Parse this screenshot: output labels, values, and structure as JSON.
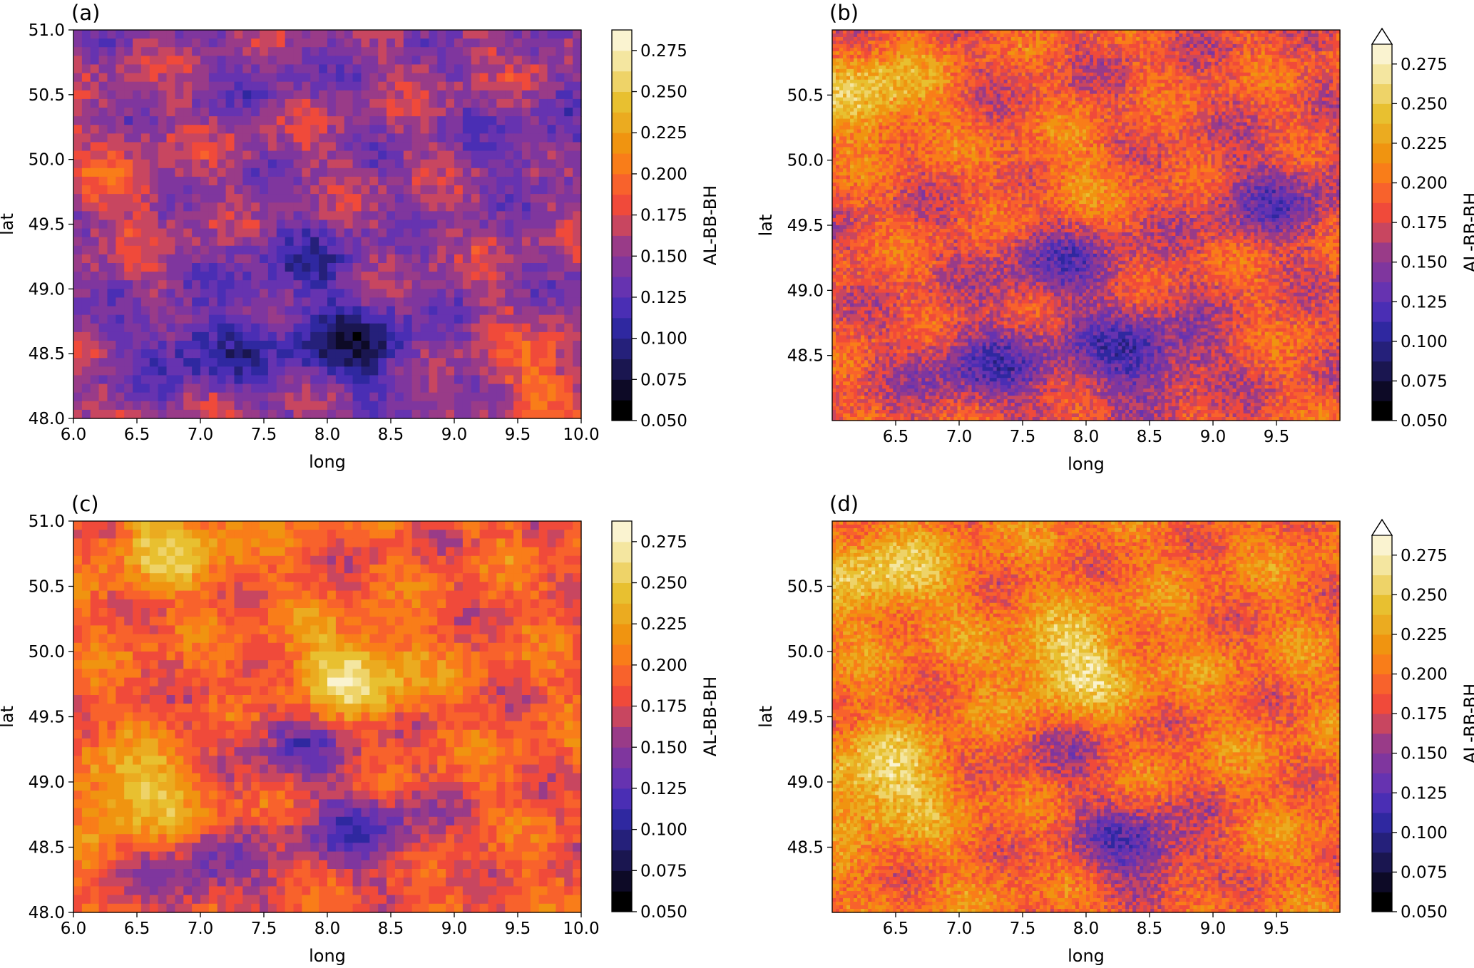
{
  "figure": {
    "colorbar": {
      "label": "AL-BB-BH",
      "ticks": [
        "0.050",
        "0.075",
        "0.100",
        "0.125",
        "0.150",
        "0.175",
        "0.200",
        "0.225",
        "0.250",
        "0.275"
      ],
      "boundaries": [
        0.05,
        0.0625,
        0.075,
        0.0875,
        0.1,
        0.1125,
        0.125,
        0.1375,
        0.15,
        0.1625,
        0.175,
        0.1875,
        0.2,
        0.2125,
        0.225,
        0.2375,
        0.25,
        0.2625,
        0.275,
        0.2875
      ],
      "colors": [
        "#000000",
        "#0d0a26",
        "#1a1650",
        "#25207a",
        "#2f28a0",
        "#4a2eb4",
        "#6633b0",
        "#7f369e",
        "#993b88",
        "#c84660",
        "#f04a3a",
        "#f8622c",
        "#f97d19",
        "#f09410",
        "#ebab20",
        "#e8c030",
        "#eed368",
        "#f4e6a0",
        "#faf3d0",
        "#ffffff"
      ],
      "extend_max_panels": [
        "b",
        "d"
      ]
    }
  },
  "chart_data": [
    {
      "type": "heatmap",
      "panel_label": "(a)",
      "xlabel": "long",
      "ylabel": "lat",
      "xlim": [
        6.0,
        10.0
      ],
      "ylim": [
        48.0,
        51.0
      ],
      "xticks": [
        "6.0",
        "6.5",
        "7.0",
        "7.5",
        "8.0",
        "8.5",
        "9.0",
        "9.5",
        "10.0"
      ],
      "yticks": [
        "48.0",
        "48.5",
        "49.0",
        "49.5",
        "50.0",
        "50.5",
        "51.0"
      ],
      "colorbar_label": "AL-BB-BH",
      "resolution": "coarse",
      "mean_value": 0.155,
      "low_albedo_regions": [
        {
          "long": 7.0,
          "lat": 48.55,
          "value": 0.11
        },
        {
          "long": 8.2,
          "lat": 48.55,
          "value": 0.09
        },
        {
          "long": 7.8,
          "lat": 49.2,
          "value": 0.12
        },
        {
          "long": 9.7,
          "lat": 50.1,
          "value": 0.13
        },
        {
          "long": 7.5,
          "lat": 50.7,
          "value": 0.14
        }
      ],
      "high_albedo_regions": [
        {
          "long": 6.3,
          "lat": 49.8,
          "value": 0.18
        },
        {
          "long": 9.7,
          "lat": 48.3,
          "value": 0.19
        }
      ]
    },
    {
      "type": "heatmap",
      "panel_label": "(b)",
      "xlabel": "long",
      "ylabel": "lat",
      "xlim": [
        6.0,
        10.0
      ],
      "ylim": [
        48.0,
        51.0
      ],
      "xticks": [
        "6.5",
        "7.0",
        "7.5",
        "8.0",
        "8.5",
        "9.0",
        "9.5"
      ],
      "yticks": [
        "48.5",
        "49.0",
        "49.5",
        "50.0",
        "50.5"
      ],
      "colorbar_label": "AL-BB-BH",
      "colorbar_extend": "max",
      "resolution": "fine",
      "mean_value": 0.185,
      "low_albedo_regions": [
        {
          "long": 7.2,
          "lat": 48.4,
          "value": 0.13
        },
        {
          "long": 8.4,
          "lat": 48.5,
          "value": 0.12
        },
        {
          "long": 7.8,
          "lat": 49.2,
          "value": 0.14
        },
        {
          "long": 9.5,
          "lat": 49.7,
          "value": 0.14
        }
      ],
      "high_albedo_regions": [
        {
          "long": 7.9,
          "lat": 49.9,
          "value": 0.21
        },
        {
          "long": 6.3,
          "lat": 50.5,
          "value": 0.25
        }
      ]
    },
    {
      "type": "heatmap",
      "panel_label": "(c)",
      "xlabel": "long",
      "ylabel": "lat",
      "xlim": [
        6.0,
        10.0
      ],
      "ylim": [
        48.0,
        51.0
      ],
      "xticks": [
        "6.0",
        "6.5",
        "7.0",
        "7.5",
        "8.0",
        "8.5",
        "9.0",
        "9.5",
        "10.0"
      ],
      "yticks": [
        "48.0",
        "48.5",
        "49.0",
        "49.5",
        "50.0",
        "50.5",
        "51.0"
      ],
      "colorbar_label": "AL-BB-BH",
      "resolution": "coarse",
      "mean_value": 0.19,
      "low_albedo_regions": [
        {
          "long": 8.3,
          "lat": 48.6,
          "value": 0.13
        },
        {
          "long": 7.8,
          "lat": 49.3,
          "value": 0.14
        },
        {
          "long": 7.0,
          "lat": 48.3,
          "value": 0.14
        }
      ],
      "high_albedo_regions": [
        {
          "long": 6.5,
          "lat": 48.9,
          "value": 0.25
        },
        {
          "long": 8.2,
          "lat": 49.8,
          "value": 0.26
        },
        {
          "long": 6.8,
          "lat": 50.8,
          "value": 0.24
        }
      ]
    },
    {
      "type": "heatmap",
      "panel_label": "(d)",
      "xlabel": "long",
      "ylabel": "lat",
      "xlim": [
        6.0,
        10.0
      ],
      "ylim": [
        48.0,
        51.0
      ],
      "xticks": [
        "6.5",
        "7.0",
        "7.5",
        "8.0",
        "8.5",
        "9.0",
        "9.5"
      ],
      "yticks": [
        "48.5",
        "49.0",
        "49.5",
        "50.0",
        "50.5"
      ],
      "colorbar_label": "AL-BB-BH",
      "colorbar_extend": "max",
      "resolution": "fine",
      "mean_value": 0.2,
      "low_albedo_regions": [
        {
          "long": 8.4,
          "lat": 48.5,
          "value": 0.13
        },
        {
          "long": 7.8,
          "lat": 49.2,
          "value": 0.17
        }
      ],
      "high_albedo_regions": [
        {
          "long": 6.4,
          "lat": 49.0,
          "value": 0.26
        },
        {
          "long": 7.9,
          "lat": 49.9,
          "value": 0.26
        },
        {
          "long": 6.4,
          "lat": 50.6,
          "value": 0.25
        }
      ]
    }
  ]
}
